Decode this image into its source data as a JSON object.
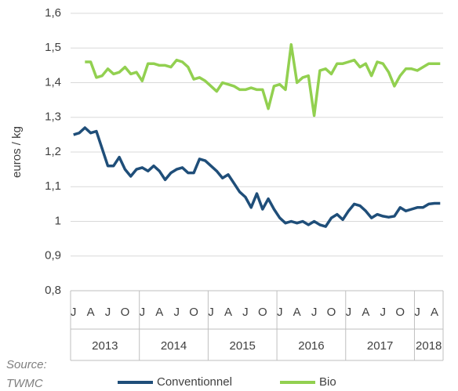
{
  "chart_data": {
    "type": "line",
    "y_label": "euros / kg",
    "source": [
      "Source:",
      "TWMC"
    ],
    "categories": [
      "J",
      null,
      null,
      "A",
      null,
      null,
      "J",
      null,
      null,
      "O",
      null,
      null,
      "J",
      null,
      null,
      "A",
      null,
      null,
      "J",
      null,
      null,
      "O",
      null,
      null,
      "J",
      null,
      null,
      "A",
      null,
      null,
      "J",
      null,
      null,
      "O",
      null,
      null,
      "J",
      null,
      null,
      "A",
      null,
      null,
      "J",
      null,
      null,
      "O",
      null,
      null,
      "J",
      null,
      null,
      "A",
      null,
      null,
      "J",
      null,
      null,
      "O",
      null,
      null,
      "J",
      null,
      null,
      "A",
      null
    ],
    "years": [
      {
        "label": "2013",
        "months": 12
      },
      {
        "label": "2014",
        "months": 12
      },
      {
        "label": "2015",
        "months": 12
      },
      {
        "label": "2016",
        "months": 12
      },
      {
        "label": "2017",
        "months": 12
      },
      {
        "label": "2018",
        "months": 5
      }
    ],
    "series": [
      {
        "name": "Conventionnel",
        "color": "#1f4e79",
        "values": [
          1.25,
          1.255,
          1.27,
          1.255,
          1.26,
          1.21,
          1.16,
          1.16,
          1.185,
          1.15,
          1.13,
          1.15,
          1.155,
          1.145,
          1.16,
          1.145,
          1.12,
          1.14,
          1.15,
          1.155,
          1.14,
          1.14,
          1.18,
          1.175,
          1.16,
          1.145,
          1.125,
          1.135,
          1.11,
          1.085,
          1.07,
          1.04,
          1.08,
          1.035,
          1.065,
          1.035,
          1.01,
          0.995,
          1.0,
          0.995,
          1.0,
          0.99,
          1.0,
          0.99,
          0.985,
          1.01,
          1.02,
          1.005,
          1.03,
          1.05,
          1.045,
          1.03,
          1.01,
          1.02,
          1.015,
          1.012,
          1.015,
          1.04,
          1.03,
          1.035,
          1.04,
          1.04,
          1.05,
          1.052,
          1.052
        ]
      },
      {
        "name": "Bio",
        "color": "#92d050",
        "values": [
          null,
          null,
          1.46,
          1.46,
          1.415,
          1.42,
          1.44,
          1.425,
          1.43,
          1.445,
          1.425,
          1.43,
          1.405,
          1.455,
          1.455,
          1.45,
          1.45,
          1.445,
          1.465,
          1.46,
          1.445,
          1.41,
          1.415,
          1.405,
          1.39,
          1.375,
          1.4,
          1.395,
          1.39,
          1.38,
          1.38,
          1.385,
          1.38,
          1.38,
          1.325,
          1.39,
          1.395,
          1.38,
          1.51,
          1.4,
          1.415,
          1.42,
          1.305,
          1.435,
          1.44,
          1.425,
          1.455,
          1.455,
          1.46,
          1.465,
          1.445,
          1.455,
          1.42,
          1.46,
          1.455,
          1.43,
          1.39,
          1.42,
          1.44,
          1.44,
          1.435,
          1.445,
          1.455,
          1.455,
          1.455
        ]
      }
    ],
    "ylim": [
      0.8,
      1.6
    ],
    "yticks": [
      {
        "value": 0.8,
        "label": "0,8"
      },
      {
        "value": 0.9,
        "label": "0,9"
      },
      {
        "value": 1,
        "label": "1"
      },
      {
        "value": 1.1,
        "label": "1,1"
      },
      {
        "value": 1.2,
        "label": "1,2"
      },
      {
        "value": 1.3,
        "label": "1,3"
      },
      {
        "value": 1.4,
        "label": "1,4"
      },
      {
        "value": 1.5,
        "label": "1,5"
      },
      {
        "value": 1.6,
        "label": "1,6"
      }
    ],
    "grid": true,
    "legend": "bottom"
  }
}
